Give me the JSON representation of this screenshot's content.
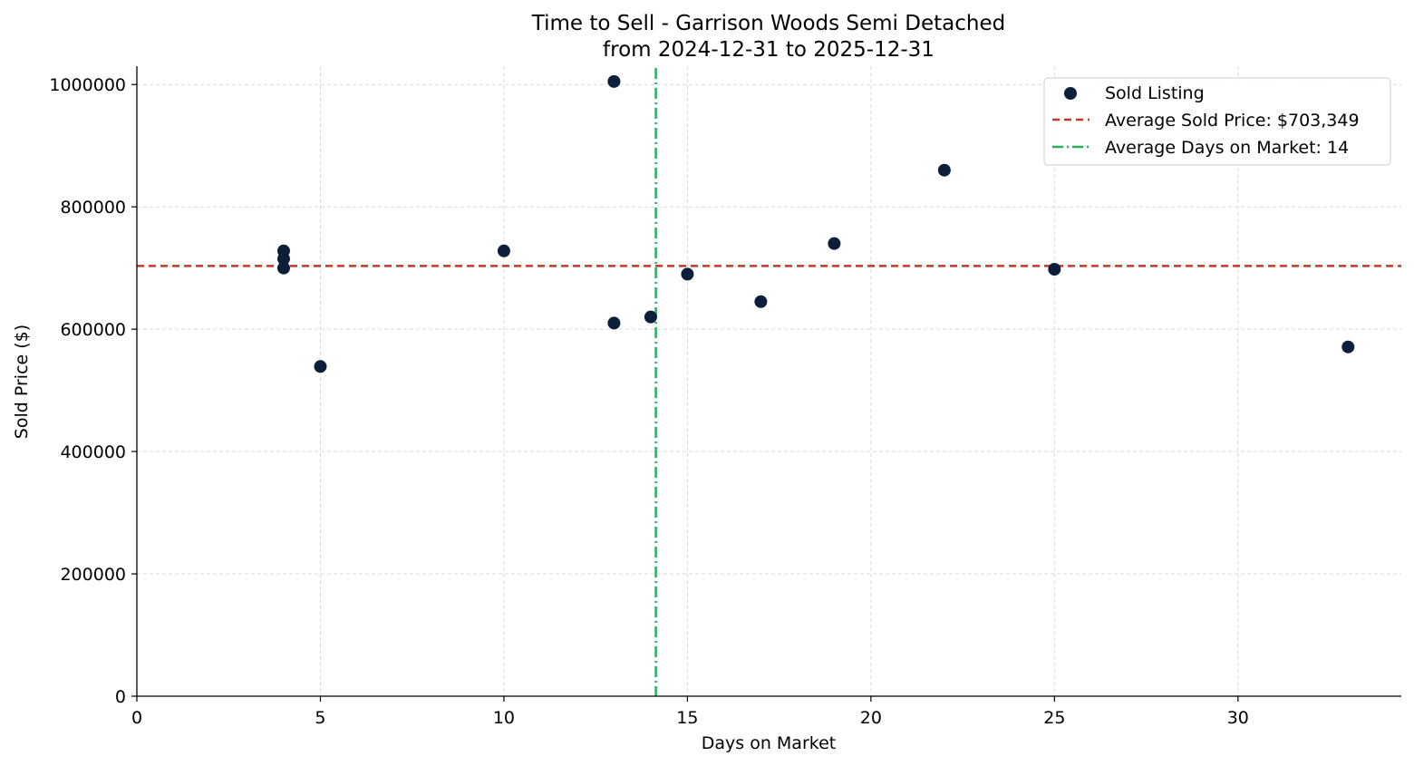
{
  "chart_data": {
    "type": "scatter",
    "title": "Time to Sell - Garrison Woods Semi Detached",
    "subtitle": "from 2024-12-31 to 2025-12-31",
    "xlabel": "Days on Market",
    "ylabel": "Sold Price ($)",
    "xlim": [
      0,
      34.45
    ],
    "ylim": [
      0,
      1030000
    ],
    "xticks": [
      0,
      5,
      10,
      15,
      20,
      25,
      30
    ],
    "yticks": [
      0,
      200000,
      400000,
      600000,
      800000,
      1000000
    ],
    "grid": true,
    "legend_position": "top-right",
    "series": [
      {
        "name": "Sold Listing",
        "color": "#0b1f3a",
        "points": [
          {
            "x": 4,
            "y": 728000
          },
          {
            "x": 4,
            "y": 715000
          },
          {
            "x": 4,
            "y": 700000
          },
          {
            "x": 5,
            "y": 539000
          },
          {
            "x": 10,
            "y": 728000
          },
          {
            "x": 13,
            "y": 1005000
          },
          {
            "x": 13,
            "y": 610000
          },
          {
            "x": 14,
            "y": 620000
          },
          {
            "x": 15,
            "y": 690000
          },
          {
            "x": 17,
            "y": 645000
          },
          {
            "x": 19,
            "y": 740000
          },
          {
            "x": 22,
            "y": 860000
          },
          {
            "x": 25,
            "y": 698000
          },
          {
            "x": 33,
            "y": 571000
          }
        ]
      }
    ],
    "reference_lines": [
      {
        "orientation": "horizontal",
        "value": 703349,
        "color": "#c0392b",
        "style": "dashed",
        "label": "Average Sold Price: $703,349"
      },
      {
        "orientation": "vertical",
        "value": 14.14,
        "color": "#27ae60",
        "style": "dashdot",
        "label": "Average Days on Market: 14"
      }
    ]
  }
}
